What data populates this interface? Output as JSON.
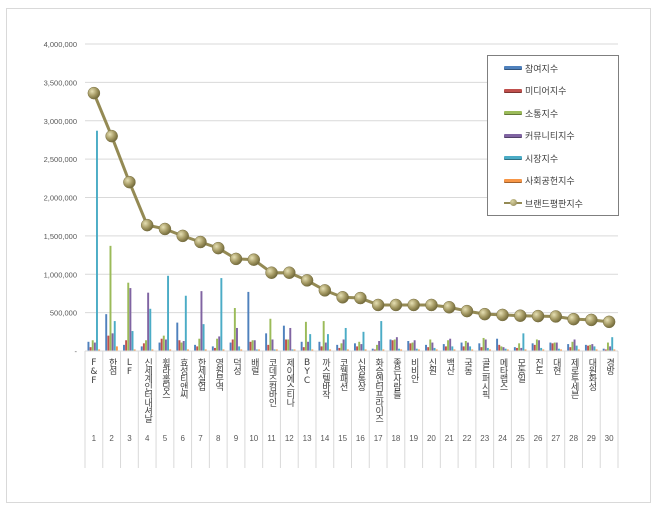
{
  "chart_data": {
    "type": "bar+line",
    "title": "",
    "xlabel": "",
    "ylabel": "",
    "ylim": [
      0,
      4000000
    ],
    "yticks": [
      0,
      500000,
      1000000,
      1500000,
      2000000,
      2500000,
      3000000,
      3500000,
      4000000
    ],
    "ytick_labels": [
      "-",
      "500,000",
      "1,000,000",
      "1,500,000",
      "2,000,000",
      "2,500,000",
      "3,000,000",
      "3,500,000",
      "4,000,000"
    ],
    "grid": true,
    "legend_position": "top-right",
    "categories": [
      "F&F",
      "한섬",
      "LF",
      "신세계인터내셔날",
      "휠라홀딩스",
      "효성티앤씨",
      "한세실업",
      "영원무역",
      "덕성",
      "배럴",
      "코데즈컴바인",
      "제이에스티나",
      "BYC",
      "까스텔바작",
      "코웰패션",
      "신성통상",
      "화승엔터프라이즈",
      "좋은사람들",
      "비비안",
      "신원",
      "백산",
      "국동",
      "골드퍼시픽",
      "메타랩스",
      "모동일",
      "진도",
      "대현",
      "제로투세븐",
      "대원화성",
      "경방"
    ],
    "ranks": [
      "1",
      "2",
      "3",
      "4",
      "5",
      "6",
      "7",
      "8",
      "9",
      "10",
      "11",
      "12",
      "13",
      "14",
      "15",
      "16",
      "17",
      "18",
      "19",
      "20",
      "21",
      "22",
      "23",
      "24",
      "25",
      "26",
      "27",
      "28",
      "29",
      "30"
    ],
    "series": [
      {
        "name": "참여지수",
        "kind": "bar",
        "color": "#4f81bd",
        "values": [
          120000,
          480000,
          80000,
          60000,
          110000,
          370000,
          80000,
          60000,
          110000,
          770000,
          230000,
          330000,
          120000,
          120000,
          80000,
          100000,
          30000,
          150000,
          130000,
          80000,
          90000,
          110000,
          100000,
          160000,
          50000,
          100000,
          110000,
          90000,
          80000,
          30000
        ]
      },
      {
        "name": "미디어지수",
        "kind": "bar",
        "color": "#c0504d",
        "values": [
          50000,
          200000,
          140000,
          100000,
          160000,
          140000,
          60000,
          40000,
          150000,
          120000,
          80000,
          150000,
          50000,
          60000,
          40000,
          60000,
          20000,
          140000,
          100000,
          50000,
          60000,
          60000,
          50000,
          80000,
          40000,
          80000,
          100000,
          50000,
          70000,
          20000
        ]
      },
      {
        "name": "소통지수",
        "kind": "bar",
        "color": "#9bbb59",
        "values": [
          140000,
          1370000,
          890000,
          140000,
          200000,
          110000,
          160000,
          160000,
          560000,
          140000,
          420000,
          150000,
          380000,
          390000,
          100000,
          120000,
          80000,
          150000,
          110000,
          150000,
          140000,
          130000,
          170000,
          60000,
          100000,
          150000,
          110000,
          120000,
          80000,
          110000
        ]
      },
      {
        "name": "커뮤니티지수",
        "kind": "bar",
        "color": "#8064a2",
        "values": [
          110000,
          230000,
          820000,
          760000,
          150000,
          130000,
          780000,
          190000,
          300000,
          140000,
          150000,
          300000,
          120000,
          110000,
          150000,
          90000,
          130000,
          180000,
          140000,
          110000,
          160000,
          110000,
          150000,
          50000,
          40000,
          140000,
          110000,
          150000,
          90000,
          60000
        ]
      },
      {
        "name": "시장지수",
        "kind": "bar",
        "color": "#4bacc6",
        "values": [
          2870000,
          390000,
          260000,
          550000,
          980000,
          720000,
          350000,
          950000,
          60000,
          20000,
          20000,
          20000,
          220000,
          220000,
          300000,
          250000,
          390000,
          30000,
          30000,
          40000,
          60000,
          60000,
          40000,
          30000,
          230000,
          40000,
          30000,
          70000,
          60000,
          180000
        ]
      },
      {
        "name": "사회공헌지수",
        "kind": "bar",
        "color": "#f79646",
        "values": [
          20000,
          60000,
          20000,
          20000,
          20000,
          20000,
          20000,
          20000,
          20000,
          20000,
          20000,
          20000,
          20000,
          20000,
          20000,
          20000,
          20000,
          20000,
          20000,
          20000,
          20000,
          20000,
          20000,
          20000,
          20000,
          20000,
          20000,
          20000,
          20000,
          20000
        ]
      },
      {
        "name": "브랜드평판지수",
        "kind": "line",
        "color": "#948a54",
        "values": [
          3360000,
          2800000,
          2200000,
          1640000,
          1590000,
          1500000,
          1420000,
          1340000,
          1200000,
          1190000,
          1020000,
          1020000,
          920000,
          790000,
          700000,
          690000,
          600000,
          600000,
          600000,
          600000,
          570000,
          520000,
          480000,
          470000,
          460000,
          455000,
          450000,
          415000,
          405000,
          380000
        ]
      }
    ]
  }
}
